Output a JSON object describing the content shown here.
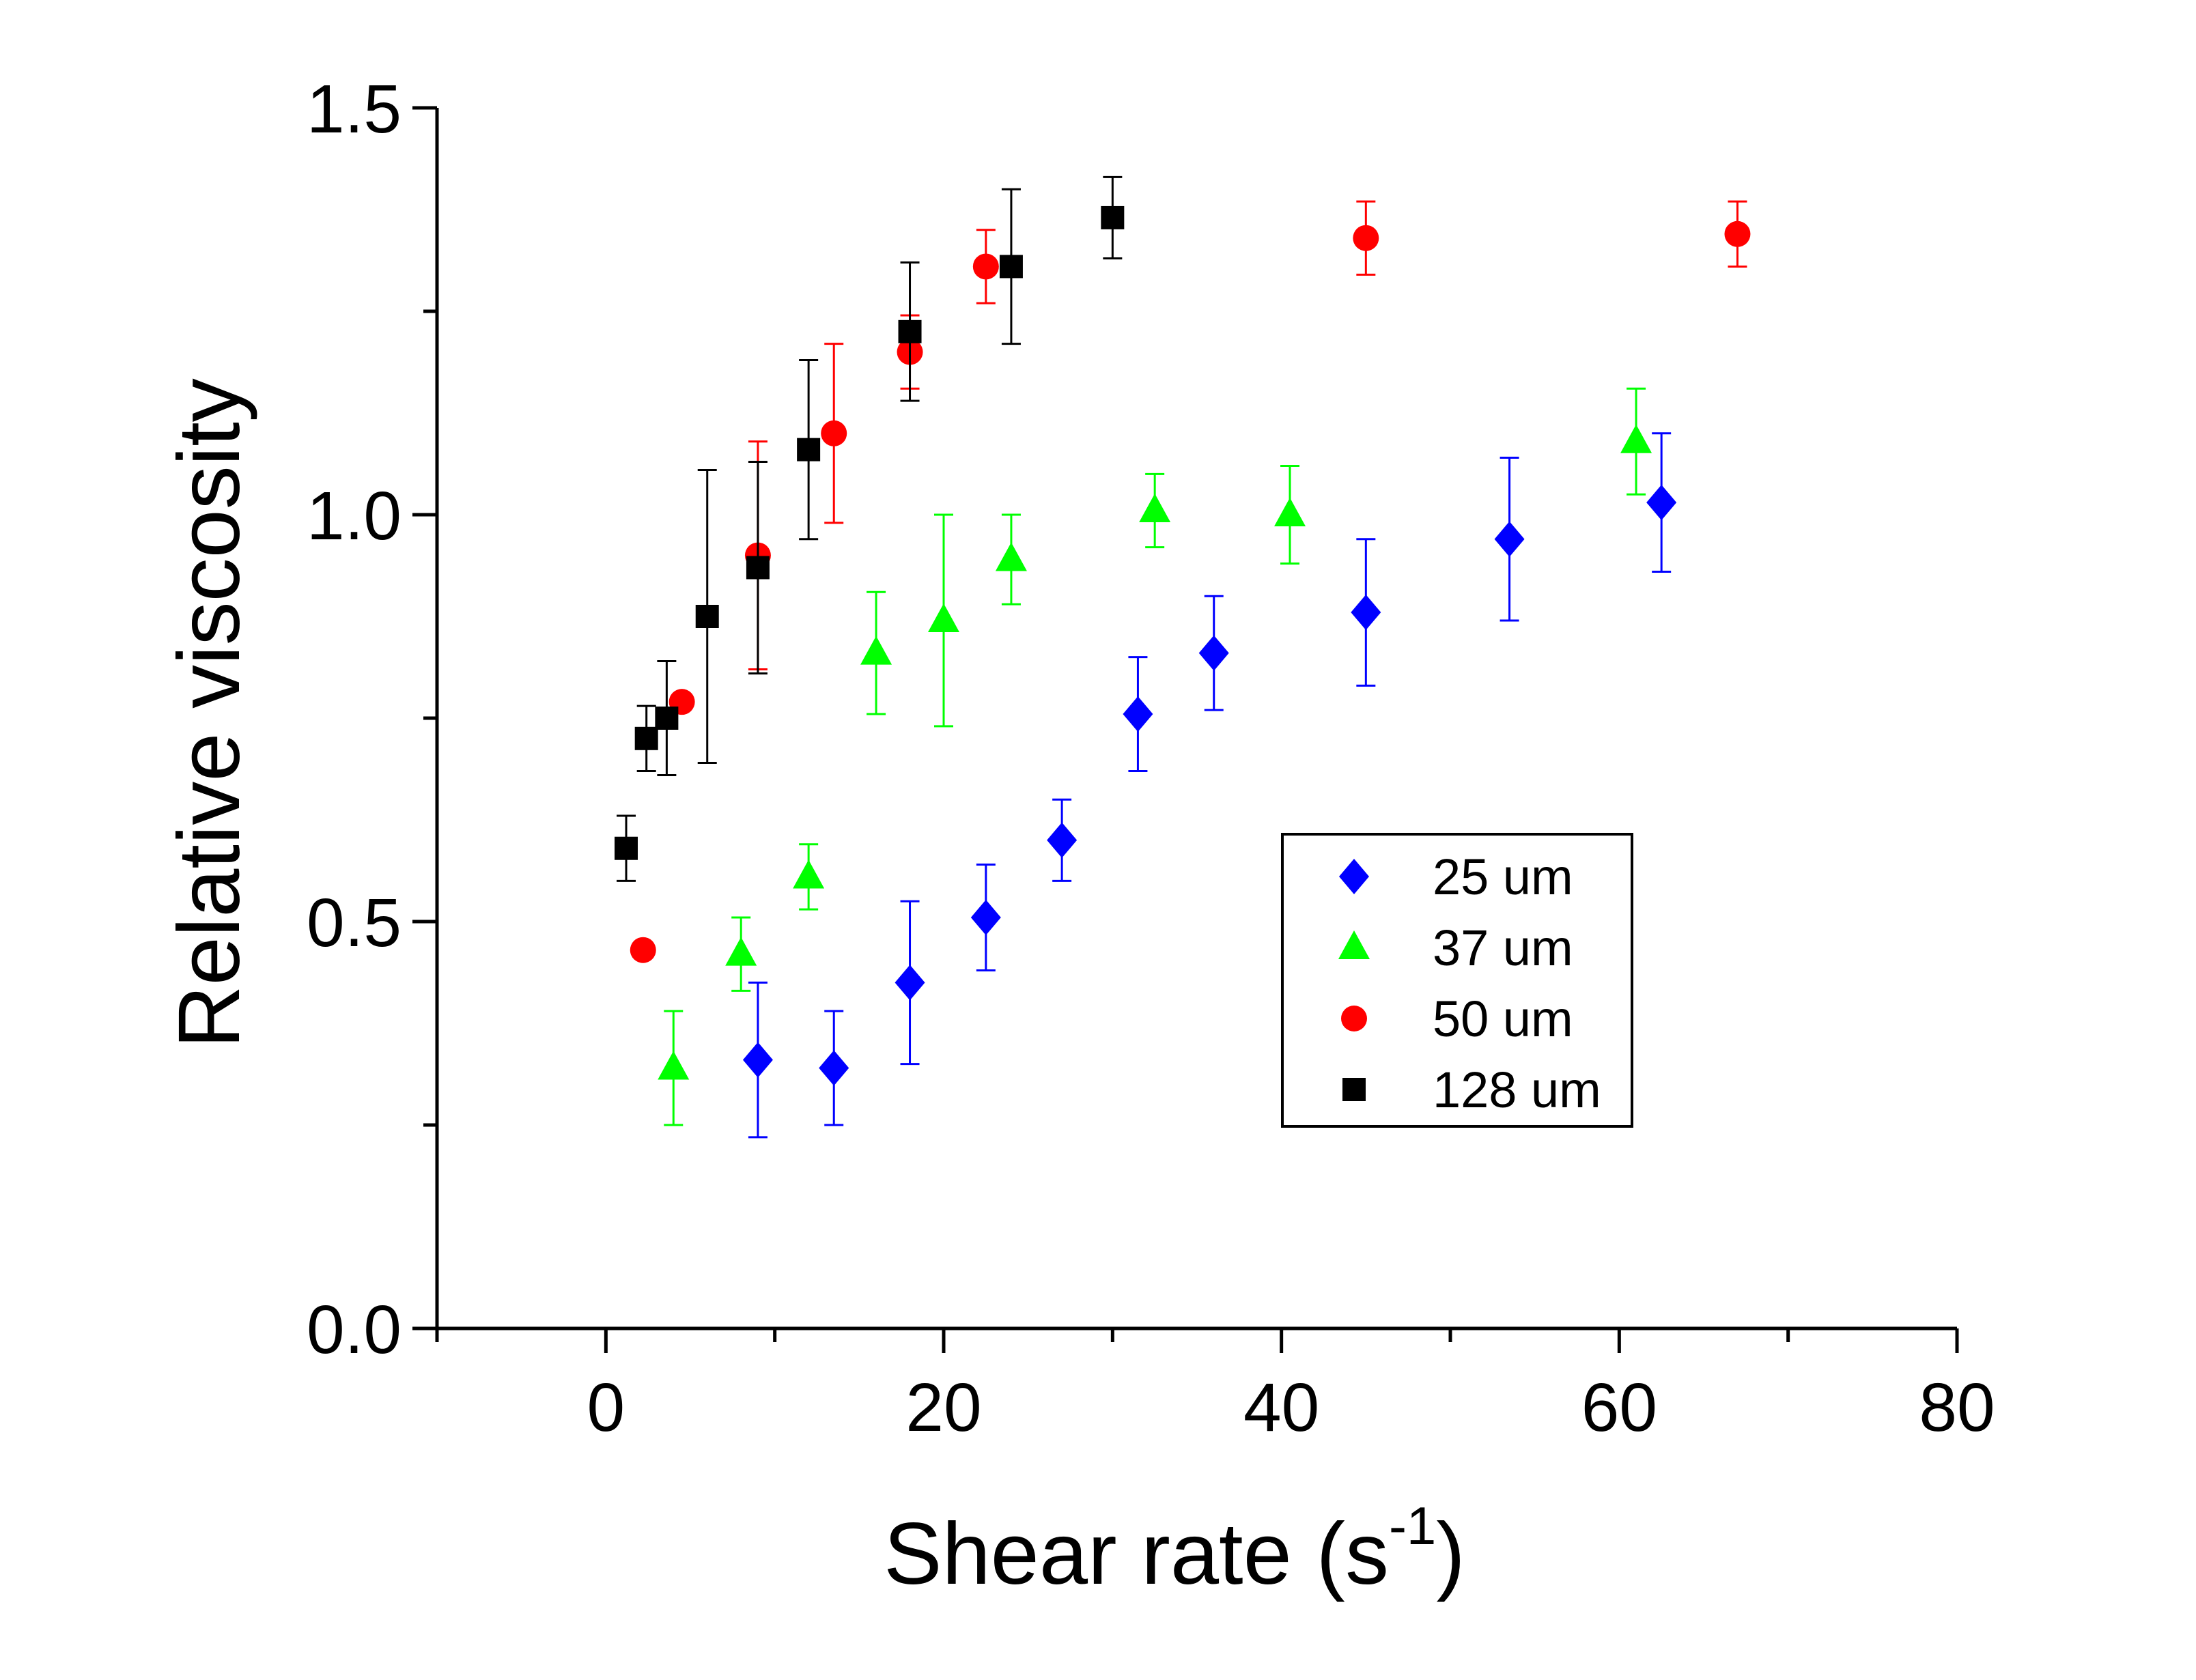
{
  "chart_data": {
    "type": "scatter",
    "xlabel": "Shear rate (s",
    "xlabel_superscript": "-1",
    "xlabel_suffix": ")",
    "ylabel": "Relative viscosity",
    "xlim": [
      -10,
      80
    ],
    "ylim": [
      0,
      1.5
    ],
    "x_ticks": [
      0,
      20,
      40,
      60,
      80
    ],
    "x_tick_labels": [
      "0",
      "20",
      "40",
      "60",
      "80"
    ],
    "y_ticks": [
      0,
      0.5,
      1.0,
      1.5
    ],
    "y_tick_labels": [
      "0.0",
      "0.5",
      "1.0",
      "1.5"
    ],
    "grid": false,
    "legend_position": "center-right",
    "series": [
      {
        "name": "25 um",
        "marker": "diamond",
        "color": "#0000ff",
        "points": [
          {
            "x": 9.0,
            "y": 0.33,
            "err": 0.095
          },
          {
            "x": 13.5,
            "y": 0.32,
            "err": 0.07
          },
          {
            "x": 18.0,
            "y": 0.425,
            "err": 0.1
          },
          {
            "x": 22.5,
            "y": 0.505,
            "err": 0.065
          },
          {
            "x": 27.0,
            "y": 0.6,
            "err": 0.05
          },
          {
            "x": 31.5,
            "y": 0.755,
            "err": 0.07
          },
          {
            "x": 36.0,
            "y": 0.83,
            "err": 0.07
          },
          {
            "x": 45.0,
            "y": 0.88,
            "err": 0.09
          },
          {
            "x": 53.5,
            "y": 0.97,
            "err": 0.1
          },
          {
            "x": 62.5,
            "y": 1.015,
            "err": 0.085
          }
        ]
      },
      {
        "name": "37 um",
        "marker": "triangle",
        "color": "#00ff00",
        "points": [
          {
            "x": 4.0,
            "y": 0.32,
            "err": 0.07
          },
          {
            "x": 8.0,
            "y": 0.46,
            "err": 0.045
          },
          {
            "x": 12.0,
            "y": 0.555,
            "err": 0.04
          },
          {
            "x": 16.0,
            "y": 0.83,
            "err": 0.075
          },
          {
            "x": 20.0,
            "y": 0.87,
            "err": 0.13
          },
          {
            "x": 24.0,
            "y": 0.945,
            "err": 0.055
          },
          {
            "x": 32.5,
            "y": 1.005,
            "err": 0.045
          },
          {
            "x": 40.5,
            "y": 1.0,
            "err": 0.06
          },
          {
            "x": 61.0,
            "y": 1.09,
            "err": 0.065
          }
        ]
      },
      {
        "name": "50 um",
        "marker": "circle",
        "color": "#ff0000",
        "points": [
          {
            "x": 2.2,
            "y": 0.465,
            "err": 0
          },
          {
            "x": 4.5,
            "y": 0.77,
            "err": 0
          },
          {
            "x": 9.0,
            "y": 0.95,
            "err": 0.14
          },
          {
            "x": 13.5,
            "y": 1.1,
            "err": 0.11
          },
          {
            "x": 18.0,
            "y": 1.2,
            "err": 0.045
          },
          {
            "x": 22.5,
            "y": 1.305,
            "err": 0.045
          },
          {
            "x": 45.0,
            "y": 1.34,
            "err": 0.045
          },
          {
            "x": 67.0,
            "y": 1.345,
            "err": 0.04
          }
        ]
      },
      {
        "name": "128 um",
        "marker": "square",
        "color": "#000000",
        "points": [
          {
            "x": 1.2,
            "y": 0.59,
            "err": 0.04
          },
          {
            "x": 2.4,
            "y": 0.725,
            "err": 0.04
          },
          {
            "x": 3.6,
            "y": 0.75,
            "err": 0.07
          },
          {
            "x": 6.0,
            "y": 0.875,
            "err": 0.18
          },
          {
            "x": 9.0,
            "y": 0.935,
            "err": 0.13
          },
          {
            "x": 12.0,
            "y": 1.08,
            "err": 0.11
          },
          {
            "x": 18.0,
            "y": 1.225,
            "err": 0.085
          },
          {
            "x": 24.0,
            "y": 1.305,
            "err": 0.095
          },
          {
            "x": 30.0,
            "y": 1.365,
            "err": 0.05
          }
        ]
      }
    ]
  }
}
